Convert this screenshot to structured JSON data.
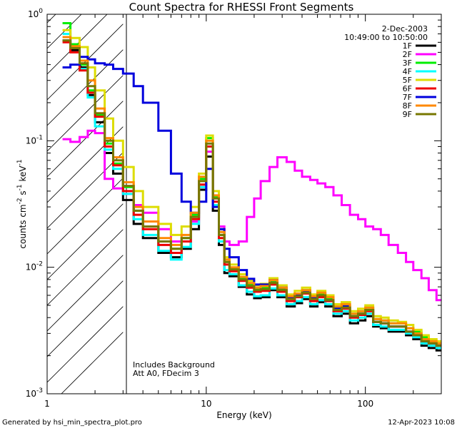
{
  "chart_data": {
    "type": "line",
    "title": "Count Spectra for RHESSI Front Segments",
    "xlabel": "Energy (keV)",
    "ylabel_parts": [
      "counts cm",
      "-2",
      " s",
      "-1",
      " keV",
      "-1"
    ],
    "xscale": "log",
    "yscale": "log",
    "xlim": [
      1,
      300
    ],
    "ylim": [
      0.001,
      1
    ],
    "x_ticks": [
      {
        "value": 1,
        "label": "1"
      },
      {
        "value": 10,
        "label": "10"
      },
      {
        "value": 100,
        "label": "100"
      }
    ],
    "y_ticks": [
      {
        "value": 0.001,
        "base": "10",
        "exp": "-3"
      },
      {
        "value": 0.01,
        "base": "10",
        "exp": "-2"
      },
      {
        "value": 0.1,
        "base": "10",
        "exp": "-1"
      },
      {
        "value": 1,
        "base": "10",
        "exp": "0"
      }
    ],
    "hatch_region": [
      1,
      3
    ],
    "date": "2-Dec-2003",
    "time_range": "10:49:00 to 10:50:00",
    "annotations": [
      "Includes Background",
      "Att A0, FDecim 3"
    ],
    "legend_position": "top-right",
    "series": [
      {
        "name": "1F",
        "color": "#000000",
        "edges": [
          1.25,
          1.4,
          1.6,
          1.8,
          2.0,
          2.3,
          2.6,
          3.0,
          3.5,
          4.0,
          5.0,
          6.0,
          7.0,
          8.0,
          9.0,
          10.0,
          11.0,
          12.0,
          13.0,
          14.0,
          16.0,
          18.0,
          20.0,
          22.0,
          25.0,
          28.0,
          32.0,
          36.0,
          40.0,
          45.0,
          50.0,
          56.0,
          63.0,
          71.0,
          80.0,
          90.0,
          100.0,
          112.0,
          125.0,
          140.0,
          160.0,
          180.0,
          200.0,
          225.0,
          250.0,
          280.0,
          300.0
        ],
        "values": [
          0.62,
          0.52,
          0.38,
          0.23,
          0.14,
          0.08,
          0.055,
          0.034,
          0.022,
          0.017,
          0.013,
          0.012,
          0.014,
          0.02,
          0.041,
          0.075,
          0.028,
          0.015,
          0.009,
          0.0085,
          0.007,
          0.0061,
          0.0057,
          0.0058,
          0.0066,
          0.0058,
          0.0049,
          0.0052,
          0.0056,
          0.0049,
          0.0053,
          0.0049,
          0.0041,
          0.0043,
          0.0036,
          0.0038,
          0.0041,
          0.0034,
          0.0033,
          0.0031,
          0.0031,
          0.0029,
          0.0027,
          0.0024,
          0.0023,
          0.0022
        ]
      },
      {
        "name": "2F",
        "color": "#ff00ff",
        "edges": [
          1.25,
          1.4,
          1.6,
          1.8,
          2.0,
          2.3,
          2.6,
          3.0,
          3.5,
          4.0,
          5.0,
          6.0,
          7.0,
          8.0,
          9.0,
          10.0,
          11.0,
          12.0,
          13.0,
          14.0,
          16.0,
          18.0,
          20.0,
          22.0,
          25.0,
          28.0,
          32.0,
          36.0,
          40.0,
          45.0,
          50.0,
          56.0,
          63.0,
          71.0,
          80.0,
          90.0,
          100.0,
          112.0,
          125.0,
          140.0,
          160.0,
          180.0,
          200.0,
          225.0,
          250.0,
          280.0,
          300.0
        ],
        "values": [
          0.103,
          0.098,
          0.107,
          0.12,
          0.115,
          0.05,
          0.042,
          0.038,
          0.031,
          0.027,
          0.02,
          0.016,
          0.016,
          0.023,
          0.043,
          0.082,
          0.036,
          0.021,
          0.016,
          0.015,
          0.016,
          0.025,
          0.035,
          0.048,
          0.062,
          0.074,
          0.068,
          0.058,
          0.052,
          0.049,
          0.046,
          0.043,
          0.037,
          0.031,
          0.026,
          0.024,
          0.021,
          0.02,
          0.018,
          0.015,
          0.013,
          0.011,
          0.0095,
          0.0082,
          0.0066,
          0.0055
        ]
      },
      {
        "name": "3F",
        "color": "#00ee00",
        "edges": [
          1.25,
          1.4,
          1.6,
          1.8,
          2.0,
          2.3,
          2.6,
          3.0,
          3.5,
          4.0,
          5.0,
          6.0,
          7.0,
          8.0,
          9.0,
          10.0,
          11.0,
          12.0,
          13.0,
          14.0,
          16.0,
          18.0,
          20.0,
          22.0,
          25.0,
          28.0,
          32.0,
          36.0,
          40.0,
          45.0,
          50.0,
          56.0,
          63.0,
          71.0,
          80.0,
          90.0,
          100.0,
          112.0,
          125.0,
          140.0,
          160.0,
          180.0,
          200.0,
          225.0,
          250.0,
          280.0,
          300.0
        ],
        "values": [
          0.85,
          0.58,
          0.4,
          0.25,
          0.16,
          0.095,
          0.066,
          0.043,
          0.028,
          0.021,
          0.016,
          0.014,
          0.017,
          0.026,
          0.05,
          0.105,
          0.036,
          0.018,
          0.011,
          0.0098,
          0.0082,
          0.0073,
          0.0067,
          0.0069,
          0.0077,
          0.0068,
          0.0058,
          0.0062,
          0.0066,
          0.0058,
          0.0062,
          0.0057,
          0.0048,
          0.005,
          0.0043,
          0.0045,
          0.0048,
          0.0039,
          0.0038,
          0.0036,
          0.0036,
          0.0033,
          0.0031,
          0.0028,
          0.0026,
          0.0025
        ]
      },
      {
        "name": "4F",
        "color": "#00ffff",
        "edges": [
          1.25,
          1.4,
          1.6,
          1.8,
          2.0,
          2.3,
          2.6,
          3.0,
          3.5,
          4.0,
          5.0,
          6.0,
          7.0,
          8.0,
          9.0,
          10.0,
          11.0,
          12.0,
          13.0,
          14.0,
          16.0,
          18.0,
          20.0,
          22.0,
          25.0,
          28.0,
          32.0,
          36.0,
          40.0,
          45.0,
          50.0,
          56.0,
          63.0,
          71.0,
          80.0,
          90.0,
          100.0,
          112.0,
          125.0,
          140.0,
          160.0,
          180.0,
          200.0,
          225.0,
          250.0,
          280.0,
          300.0
        ],
        "values": [
          0.7,
          0.54,
          0.37,
          0.22,
          0.13,
          0.085,
          0.06,
          0.038,
          0.024,
          0.018,
          0.0135,
          0.0115,
          0.0145,
          0.022,
          0.043,
          0.09,
          0.031,
          0.016,
          0.0095,
          0.0088,
          0.0072,
          0.0064,
          0.0059,
          0.006,
          0.0068,
          0.006,
          0.0051,
          0.0054,
          0.0058,
          0.0051,
          0.0055,
          0.0051,
          0.0043,
          0.0045,
          0.0038,
          0.004,
          0.0043,
          0.0035,
          0.0034,
          0.0032,
          0.0032,
          0.003,
          0.0028,
          0.0025,
          0.0024,
          0.0023
        ]
      },
      {
        "name": "5F",
        "color": "#dddd00",
        "edges": [
          1.25,
          1.4,
          1.6,
          1.8,
          2.0,
          2.3,
          2.6,
          3.0,
          3.5,
          4.0,
          5.0,
          6.0,
          7.0,
          8.0,
          9.0,
          10.0,
          11.0,
          12.0,
          13.0,
          14.0,
          16.0,
          18.0,
          20.0,
          22.0,
          25.0,
          28.0,
          32.0,
          36.0,
          40.0,
          45.0,
          50.0,
          56.0,
          63.0,
          71.0,
          80.0,
          90.0,
          100.0,
          112.0,
          125.0,
          140.0,
          160.0,
          180.0,
          200.0,
          225.0,
          250.0,
          280.0,
          300.0
        ],
        "values": [
          0.75,
          0.65,
          0.55,
          0.38,
          0.25,
          0.15,
          0.1,
          0.062,
          0.04,
          0.03,
          0.022,
          0.018,
          0.021,
          0.03,
          0.055,
          0.11,
          0.04,
          0.02,
          0.012,
          0.0105,
          0.0088,
          0.0078,
          0.0072,
          0.0074,
          0.0082,
          0.0072,
          0.0061,
          0.0065,
          0.0069,
          0.0061,
          0.0065,
          0.006,
          0.0051,
          0.0053,
          0.0045,
          0.0047,
          0.005,
          0.0041,
          0.004,
          0.0038,
          0.0037,
          0.0035,
          0.0032,
          0.0029,
          0.0027,
          0.0026
        ]
      },
      {
        "name": "6F",
        "color": "#ee0000",
        "edges": [
          1.25,
          1.4,
          1.6,
          1.8,
          2.0,
          2.3,
          2.6,
          3.0,
          3.5,
          4.0,
          5.0,
          6.0,
          7.0,
          8.0,
          9.0,
          10.0,
          11.0,
          12.0,
          13.0,
          14.0,
          16.0,
          18.0,
          20.0,
          22.0,
          25.0,
          28.0,
          32.0,
          36.0,
          40.0,
          45.0,
          50.0,
          56.0,
          63.0,
          71.0,
          80.0,
          90.0,
          100.0,
          112.0,
          125.0,
          140.0,
          160.0,
          180.0,
          200.0,
          225.0,
          250.0,
          280.0,
          300.0
        ],
        "values": [
          0.6,
          0.5,
          0.36,
          0.24,
          0.155,
          0.09,
          0.064,
          0.04,
          0.026,
          0.02,
          0.015,
          0.013,
          0.016,
          0.024,
          0.045,
          0.09,
          0.033,
          0.017,
          0.0105,
          0.0093,
          0.0078,
          0.0069,
          0.0064,
          0.0065,
          0.0073,
          0.0064,
          0.0054,
          0.0058,
          0.0062,
          0.0054,
          0.0058,
          0.0054,
          0.0045,
          0.0047,
          0.004,
          0.0042,
          0.0045,
          0.0037,
          0.0036,
          0.0034,
          0.0034,
          0.0031,
          0.0029,
          0.0026,
          0.0025,
          0.0024
        ]
      },
      {
        "name": "7F",
        "color": "#0000dd",
        "edges": [
          1.25,
          1.4,
          1.6,
          1.8,
          2.0,
          2.3,
          2.6,
          3.0,
          3.5,
          4.0,
          5.0,
          6.0,
          7.0,
          8.0,
          9.0,
          10.0,
          11.0,
          12.0,
          13.0,
          14.0,
          16.0,
          18.0,
          20.0,
          22.0,
          25.0,
          28.0,
          32.0,
          36.0,
          40.0,
          45.0,
          50.0,
          56.0,
          63.0,
          71.0,
          80.0,
          90.0,
          100.0,
          112.0,
          125.0,
          140.0,
          160.0,
          180.0,
          200.0,
          225.0,
          250.0,
          280.0,
          300.0
        ],
        "values": [
          0.38,
          0.4,
          0.46,
          0.44,
          0.41,
          0.4,
          0.37,
          0.34,
          0.27,
          0.2,
          0.12,
          0.055,
          0.033,
          0.027,
          0.033,
          0.06,
          0.03,
          0.02,
          0.014,
          0.012,
          0.0095,
          0.0081,
          0.0073,
          0.0073,
          0.0079,
          0.0069,
          0.0058,
          0.0061,
          0.0065,
          0.0057,
          0.006,
          0.0055,
          0.0047,
          0.0049,
          0.0041,
          0.0043,
          0.0046,
          0.0037,
          0.0036,
          0.0034,
          0.0034,
          0.0031,
          0.0029,
          0.0026,
          0.0025,
          0.0024
        ]
      },
      {
        "name": "8F",
        "color": "#ff8800",
        "edges": [
          1.25,
          1.4,
          1.6,
          1.8,
          2.0,
          2.3,
          2.6,
          3.0,
          3.5,
          4.0,
          5.0,
          6.0,
          7.0,
          8.0,
          9.0,
          10.0,
          11.0,
          12.0,
          13.0,
          14.0,
          16.0,
          18.0,
          20.0,
          22.0,
          25.0,
          28.0,
          32.0,
          36.0,
          40.0,
          45.0,
          50.0,
          56.0,
          63.0,
          71.0,
          80.0,
          90.0,
          100.0,
          112.0,
          125.0,
          140.0,
          160.0,
          180.0,
          200.0,
          225.0,
          250.0,
          280.0,
          300.0
        ],
        "values": [
          0.66,
          0.56,
          0.43,
          0.3,
          0.18,
          0.105,
          0.074,
          0.047,
          0.03,
          0.023,
          0.017,
          0.015,
          0.018,
          0.027,
          0.052,
          0.1,
          0.037,
          0.019,
          0.0115,
          0.01,
          0.0084,
          0.0075,
          0.0069,
          0.0071,
          0.0079,
          0.0069,
          0.0059,
          0.0062,
          0.0066,
          0.0059,
          0.0063,
          0.0058,
          0.0049,
          0.0051,
          0.0043,
          0.0045,
          0.0048,
          0.0039,
          0.0038,
          0.0036,
          0.0036,
          0.0033,
          0.003,
          0.0027,
          0.0026,
          0.0025
        ]
      },
      {
        "name": "9F",
        "color": "#777700",
        "edges": [
          1.25,
          1.4,
          1.6,
          1.8,
          2.0,
          2.3,
          2.6,
          3.0,
          3.5,
          4.0,
          5.0,
          6.0,
          7.0,
          8.0,
          9.0,
          10.0,
          11.0,
          12.0,
          13.0,
          14.0,
          16.0,
          18.0,
          20.0,
          22.0,
          25.0,
          28.0,
          32.0,
          36.0,
          40.0,
          45.0,
          50.0,
          56.0,
          63.0,
          71.0,
          80.0,
          90.0,
          100.0,
          112.0,
          125.0,
          140.0,
          160.0,
          180.0,
          200.0,
          225.0,
          250.0,
          280.0,
          300.0
        ],
        "values": [
          0.62,
          0.54,
          0.41,
          0.27,
          0.165,
          0.1,
          0.07,
          0.044,
          0.028,
          0.021,
          0.016,
          0.014,
          0.017,
          0.025,
          0.048,
          0.095,
          0.035,
          0.018,
          0.011,
          0.0096,
          0.008,
          0.0071,
          0.0066,
          0.0067,
          0.0075,
          0.0066,
          0.0056,
          0.0059,
          0.0063,
          0.0056,
          0.006,
          0.0055,
          0.0046,
          0.0048,
          0.0041,
          0.0043,
          0.0046,
          0.0037,
          0.0036,
          0.0034,
          0.0034,
          0.0031,
          0.0029,
          0.0026,
          0.0025,
          0.0024
        ]
      }
    ]
  },
  "footer": {
    "generated_by": "Generated by hsi_min_spectra_plot.pro",
    "timestamp": "12-Apr-2023 10:08"
  }
}
